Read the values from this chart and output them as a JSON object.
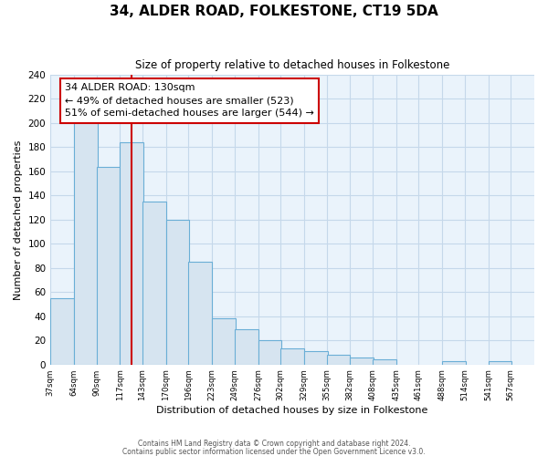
{
  "title": "34, ALDER ROAD, FOLKESTONE, CT19 5DA",
  "subtitle": "Size of property relative to detached houses in Folkestone",
  "xlabel": "Distribution of detached houses by size in Folkestone",
  "ylabel": "Number of detached properties",
  "bins": [
    37,
    64,
    90,
    117,
    143,
    170,
    196,
    223,
    249,
    276,
    302,
    329,
    355,
    382,
    408,
    435,
    461,
    488,
    514,
    541,
    567
  ],
  "bin_labels": [
    "37sqm",
    "64sqm",
    "90sqm",
    "117sqm",
    "143sqm",
    "170sqm",
    "196sqm",
    "223sqm",
    "249sqm",
    "276sqm",
    "302sqm",
    "329sqm",
    "355sqm",
    "382sqm",
    "408sqm",
    "435sqm",
    "461sqm",
    "488sqm",
    "514sqm",
    "541sqm",
    "567sqm"
  ],
  "counts": [
    55,
    201,
    164,
    184,
    135,
    120,
    85,
    38,
    29,
    20,
    13,
    11,
    8,
    6,
    4,
    0,
    0,
    3,
    0,
    3,
    0
  ],
  "bar_color": "#d6e4f0",
  "bar_edge_color": "#6aaed6",
  "grid_color": "#c5d8ea",
  "background_color": "#eaf3fb",
  "vline_x": 130,
  "vline_color": "#cc0000",
  "annotation_text_line1": "34 ALDER ROAD: 130sqm",
  "annotation_text_line2": "← 49% of detached houses are smaller (523)",
  "annotation_text_line3": "51% of semi-detached houses are larger (544) →",
  "ylim": [
    0,
    240
  ],
  "yticks": [
    0,
    20,
    40,
    60,
    80,
    100,
    120,
    140,
    160,
    180,
    200,
    220,
    240
  ],
  "footer1": "Contains HM Land Registry data © Crown copyright and database right 2024.",
  "footer2": "Contains public sector information licensed under the Open Government Licence v3.0."
}
